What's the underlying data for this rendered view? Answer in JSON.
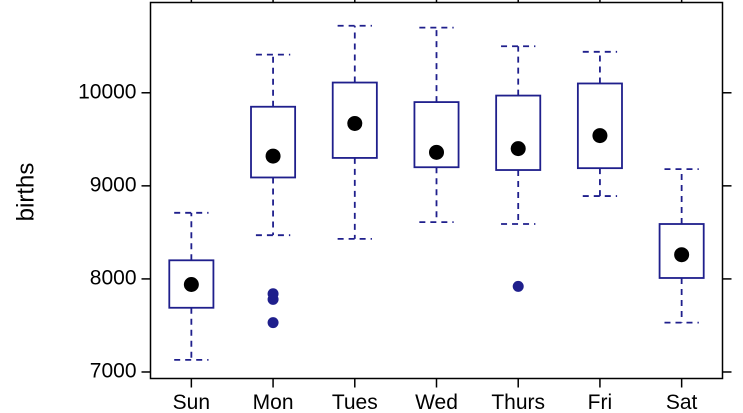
{
  "chart_data": {
    "type": "box",
    "categories": [
      "Sun",
      "Mon",
      "Tues",
      "Wed",
      "Thurs",
      "Fri",
      "Sat"
    ],
    "ylabel": "births",
    "xlabel": "",
    "title": "",
    "ylim": [
      6930,
      10970
    ],
    "yticks": [
      7000,
      8000,
      9000,
      10000
    ],
    "yticklabels": [
      "7000",
      "8000",
      "9000",
      "10000"
    ],
    "grid": false,
    "colors": {
      "box": "#1f1f8c",
      "median_dot": "#000000",
      "outlier": "#1f1f8c",
      "frame": "#000000"
    },
    "boxes": [
      {
        "category": "Sun",
        "whisker_low": 7130,
        "q1": 7690,
        "median": 7940,
        "q3": 8200,
        "whisker_high": 8710,
        "outliers": []
      },
      {
        "category": "Mon",
        "whisker_low": 8470,
        "q1": 9090,
        "median": 9320,
        "q3": 9850,
        "whisker_high": 10410,
        "outliers": [
          7530,
          7780,
          7840
        ]
      },
      {
        "category": "Tues",
        "whisker_low": 8430,
        "q1": 9300,
        "median": 9670,
        "q3": 10110,
        "whisker_high": 10720,
        "outliers": []
      },
      {
        "category": "Wed",
        "whisker_low": 8610,
        "q1": 9200,
        "median": 9360,
        "q3": 9900,
        "whisker_high": 10700,
        "outliers": []
      },
      {
        "category": "Thurs",
        "whisker_low": 8590,
        "q1": 9170,
        "median": 9400,
        "q3": 9970,
        "whisker_high": 10500,
        "outliers": [
          7920
        ]
      },
      {
        "category": "Fri",
        "whisker_low": 8890,
        "q1": 9190,
        "median": 9540,
        "q3": 10100,
        "whisker_high": 10440,
        "outliers": []
      },
      {
        "category": "Sat",
        "whisker_low": 7530,
        "q1": 8010,
        "median": 8260,
        "q3": 8590,
        "whisker_high": 9180,
        "outliers": []
      }
    ]
  }
}
